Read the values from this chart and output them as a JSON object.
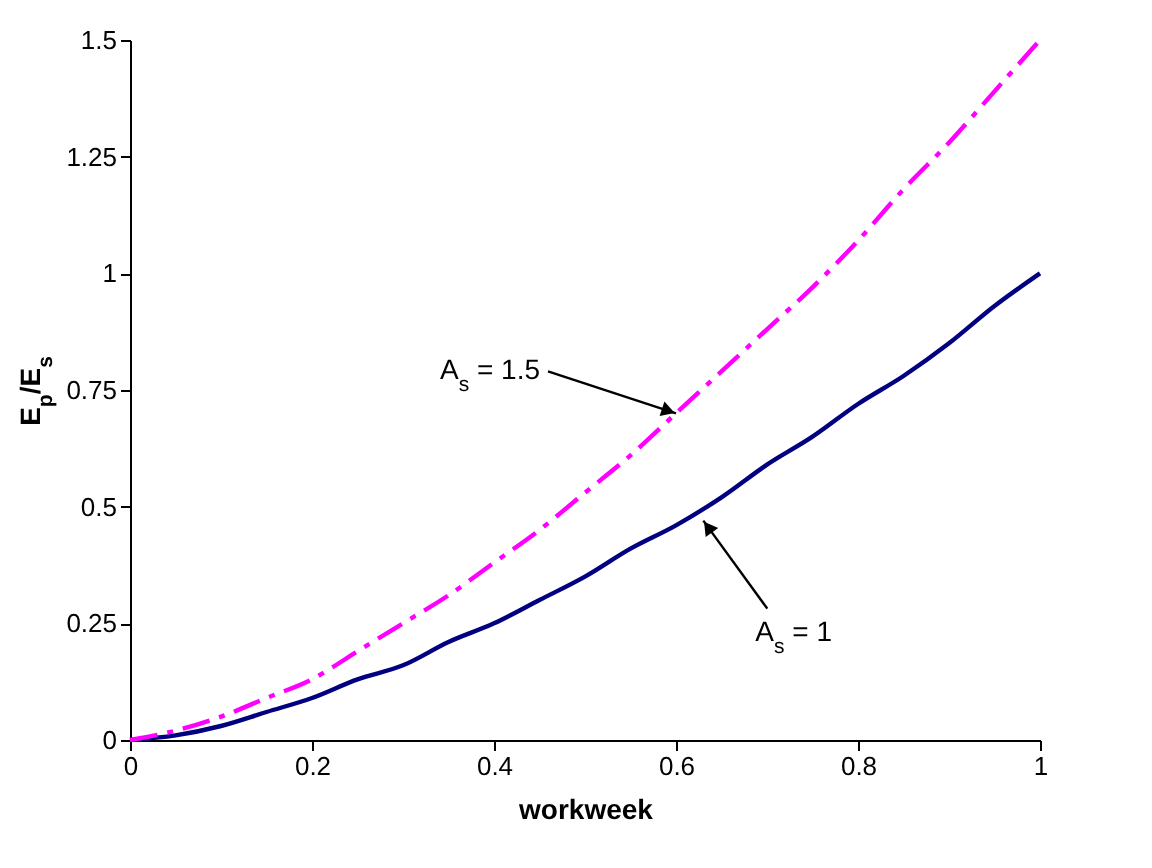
{
  "chart_data": {
    "type": "line",
    "xlabel": "workweek",
    "ylabel": "E$_{p}$/E$_{s}$",
    "x": [
      0,
      0.05,
      0.1,
      0.15,
      0.2,
      0.25,
      0.3,
      0.35,
      0.4,
      0.45,
      0.5,
      0.55,
      0.6,
      0.65,
      0.7,
      0.75,
      0.8,
      0.85,
      0.9,
      0.95,
      1
    ],
    "series": [
      {
        "color": "#000080",
        "line_style": "solid",
        "values": [
          0,
          0.01,
          0.03,
          0.06,
          0.09,
          0.13,
          0.16,
          0.21,
          0.25,
          0.3,
          0.35,
          0.41,
          0.46,
          0.52,
          0.59,
          0.65,
          0.72,
          0.78,
          0.85,
          0.93,
          1
        ]
      },
      {
        "color": "#ff00ff",
        "line_style": "dashed",
        "values": [
          0,
          0.02,
          0.05,
          0.09,
          0.13,
          0.19,
          0.25,
          0.31,
          0.38,
          0.45,
          0.53,
          0.61,
          0.7,
          0.79,
          0.88,
          0.97,
          1.07,
          1.18,
          1.28,
          1.39,
          1.5
        ]
      }
    ],
    "xlim": [
      0,
      1
    ],
    "xticks": [
      0,
      0.2,
      0.4,
      0.6,
      0.8,
      1
    ],
    "ylim": [
      0,
      1.5
    ],
    "yticks": [
      0,
      0.25,
      0.5,
      0.75,
      1,
      1.25,
      1.5
    ],
    "grid": false,
    "marker": "none",
    "annotations": [
      {
        "text": "A$_{s}$ = 1.5",
        "x": 0.6,
        "y": 0.7
      },
      {
        "text": "A$_{s}$ = 1",
        "x": 0.63,
        "y": 0.47
      }
    ]
  }
}
